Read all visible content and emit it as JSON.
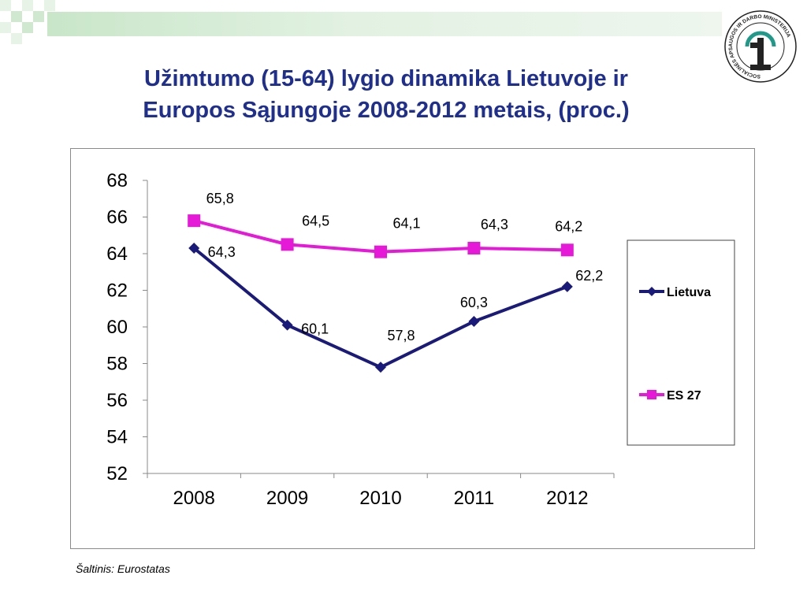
{
  "slide": {
    "title_line1": "Užimtumo (15-64) lygio dinamika Lietuvoje ir",
    "title_line2": "Europos Sąjungoje 2008-2012 metais, (proc.)",
    "source": "Šaltinis: Eurostatas",
    "logo_text": "SOCIALINĖS APSAUGOS IR DARBO MINISTERIJA"
  },
  "colors": {
    "title": "#1f2f8f",
    "lietuva": "#1a1a7a",
    "es27": "#e619d9",
    "header": "#c9e6c9"
  },
  "chart_data": {
    "type": "line",
    "categories": [
      "2008",
      "2009",
      "2010",
      "2011",
      "2012"
    ],
    "series": [
      {
        "name": "Lietuva",
        "values": [
          64.3,
          60.1,
          57.8,
          60.3,
          62.2
        ],
        "labels": [
          "64,3",
          "60,1",
          "57,8",
          "60,3",
          "62,2"
        ],
        "marker": "diamond"
      },
      {
        "name": "ES 27",
        "values": [
          65.8,
          64.5,
          64.1,
          64.3,
          64.2
        ],
        "labels": [
          "65,8",
          "64,5",
          "64,1",
          "64,3",
          "64,2"
        ],
        "marker": "square"
      }
    ],
    "ylim": [
      52,
      68
    ],
    "yticks": [
      "52",
      "54",
      "56",
      "58",
      "60",
      "62",
      "64",
      "66",
      "68"
    ],
    "grid": false,
    "legend": "right"
  }
}
